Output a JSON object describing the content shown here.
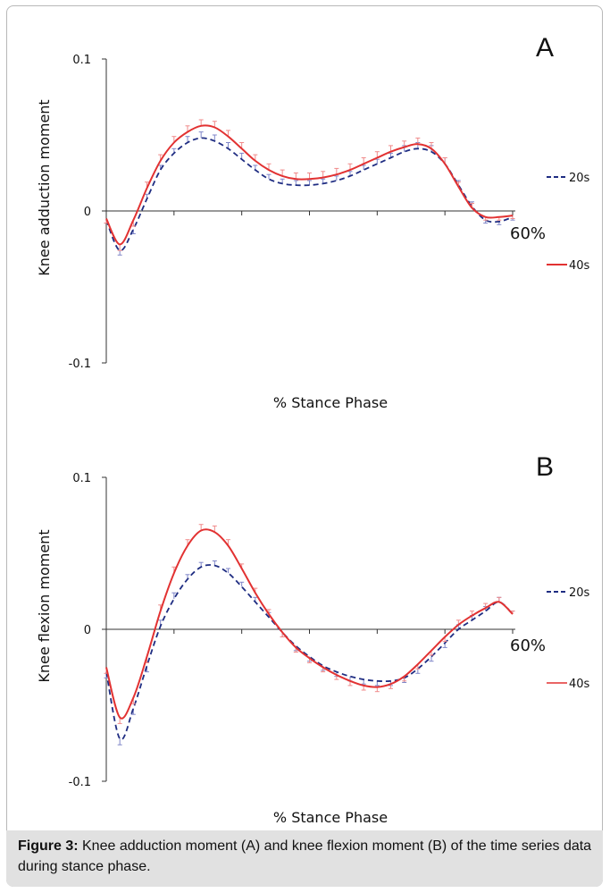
{
  "caption": {
    "label": "Figure 3:",
    "text": " Knee adduction moment (A) and knee flexion moment (B) of the time series data during stance phase."
  },
  "colors": {
    "series_20s": "#1f2d82",
    "series_40s": "#e23232",
    "errorbar_20s": "#7f86c8",
    "errorbar_40s": "#f08a8a",
    "axis": "#333333"
  },
  "chart_data": [
    {
      "type": "line",
      "panel_label": "A",
      "xlabel": "% Stance Phase",
      "ylabel": "Knee adduction moment",
      "ylim": [
        -0.1,
        0.1
      ],
      "yticks": [
        "0.1",
        "0",
        "-0.1"
      ],
      "end_label": "60%",
      "x": [
        0,
        2,
        4,
        6,
        8,
        10,
        12,
        14,
        16,
        18,
        20,
        22,
        24,
        26,
        28,
        30,
        32,
        34,
        36,
        38,
        40,
        42,
        44,
        46,
        48,
        50,
        52,
        54,
        56,
        58,
        60
      ],
      "series": [
        {
          "name": "20s",
          "style": "dashed",
          "values": [
            -0.006,
            -0.026,
            -0.012,
            0.008,
            0.027,
            0.038,
            0.045,
            0.048,
            0.046,
            0.041,
            0.034,
            0.027,
            0.021,
            0.018,
            0.017,
            0.017,
            0.018,
            0.02,
            0.023,
            0.027,
            0.031,
            0.035,
            0.039,
            0.041,
            0.039,
            0.031,
            0.017,
            0.003,
            -0.006,
            -0.007,
            -0.004
          ],
          "error": [
            0.002,
            0.003,
            0.003,
            0.003,
            0.003,
            0.003,
            0.004,
            0.004,
            0.004,
            0.004,
            0.004,
            0.003,
            0.003,
            0.003,
            0.003,
            0.003,
            0.003,
            0.003,
            0.003,
            0.003,
            0.003,
            0.003,
            0.004,
            0.004,
            0.004,
            0.004,
            0.003,
            0.003,
            0.002,
            0.002,
            0.002
          ]
        },
        {
          "name": "40s",
          "style": "solid",
          "values": [
            -0.005,
            -0.022,
            -0.006,
            0.015,
            0.033,
            0.045,
            0.052,
            0.056,
            0.055,
            0.049,
            0.041,
            0.033,
            0.027,
            0.023,
            0.021,
            0.021,
            0.022,
            0.024,
            0.027,
            0.031,
            0.035,
            0.039,
            0.042,
            0.044,
            0.041,
            0.031,
            0.016,
            0.002,
            -0.004,
            -0.004,
            -0.003
          ],
          "error": [
            0.003,
            0.004,
            0.004,
            0.004,
            0.004,
            0.004,
            0.004,
            0.004,
            0.004,
            0.004,
            0.004,
            0.004,
            0.004,
            0.004,
            0.004,
            0.004,
            0.004,
            0.004,
            0.004,
            0.004,
            0.004,
            0.004,
            0.004,
            0.004,
            0.004,
            0.004,
            0.003,
            0.003,
            0.002,
            0.002,
            0.002
          ]
        }
      ],
      "legend": [
        "20s",
        "40s"
      ]
    },
    {
      "type": "line",
      "panel_label": "B",
      "xlabel": "% Stance Phase",
      "ylabel": "Knee flexion moment",
      "ylim": [
        -0.1,
        0.1
      ],
      "yticks": [
        "0.1",
        "0",
        "-0.1"
      ],
      "end_label": "60%",
      "x": [
        0,
        2,
        4,
        6,
        8,
        10,
        12,
        14,
        16,
        18,
        20,
        22,
        24,
        26,
        28,
        30,
        32,
        34,
        36,
        38,
        40,
        42,
        44,
        46,
        48,
        50,
        52,
        54,
        56,
        58,
        60
      ],
      "series": [
        {
          "name": "20s",
          "style": "dashed",
          "values": [
            -0.028,
            -0.072,
            -0.052,
            -0.024,
            0.002,
            0.02,
            0.033,
            0.041,
            0.042,
            0.037,
            0.028,
            0.018,
            0.008,
            -0.002,
            -0.011,
            -0.018,
            -0.024,
            -0.028,
            -0.031,
            -0.033,
            -0.034,
            -0.034,
            -0.032,
            -0.026,
            -0.018,
            -0.009,
            0.0,
            0.006,
            0.012,
            0.018,
            0.01
          ],
          "error": [
            0.004,
            0.004,
            0.004,
            0.004,
            0.004,
            0.004,
            0.003,
            0.003,
            0.003,
            0.003,
            0.003,
            0.003,
            0.003,
            0.003,
            0.003,
            0.003,
            0.003,
            0.003,
            0.003,
            0.003,
            0.003,
            0.003,
            0.003,
            0.003,
            0.003,
            0.003,
            0.003,
            0.003,
            0.003,
            0.003,
            0.002
          ]
        },
        {
          "name": "40s",
          "style": "solid",
          "values": [
            -0.025,
            -0.058,
            -0.045,
            -0.018,
            0.012,
            0.037,
            0.055,
            0.065,
            0.064,
            0.055,
            0.04,
            0.024,
            0.01,
            -0.002,
            -0.012,
            -0.019,
            -0.025,
            -0.03,
            -0.034,
            -0.037,
            -0.038,
            -0.036,
            -0.031,
            -0.023,
            -0.014,
            -0.005,
            0.003,
            0.009,
            0.014,
            0.018,
            0.01
          ],
          "error": [
            0.004,
            0.004,
            0.004,
            0.004,
            0.004,
            0.004,
            0.004,
            0.004,
            0.004,
            0.004,
            0.003,
            0.003,
            0.003,
            0.003,
            0.003,
            0.003,
            0.003,
            0.003,
            0.003,
            0.003,
            0.003,
            0.003,
            0.003,
            0.003,
            0.003,
            0.003,
            0.003,
            0.003,
            0.003,
            0.003,
            0.002
          ]
        }
      ],
      "legend": [
        "20s",
        "40s"
      ]
    }
  ]
}
